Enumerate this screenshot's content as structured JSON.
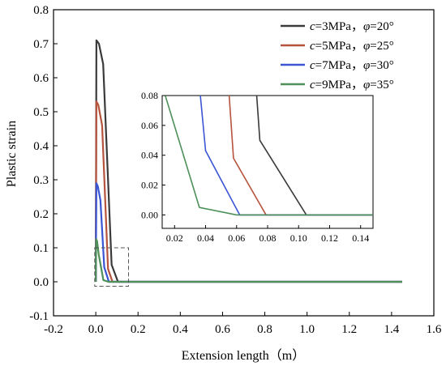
{
  "chart_data": {
    "type": "line",
    "xlabel": "Extension length（m）",
    "ylabel": "Plastic strain",
    "xlim": [
      -0.2,
      1.6
    ],
    "ylim": [
      -0.1,
      0.8
    ],
    "xticks": [
      "-0.2",
      "0.0",
      "0.2",
      "0.4",
      "0.6",
      "0.8",
      "1.0",
      "1.2",
      "1.4",
      "1.6"
    ],
    "yticks": [
      "-0.1",
      "0.0",
      "0.1",
      "0.2",
      "0.3",
      "0.4",
      "0.5",
      "0.6",
      "0.7",
      "0.8"
    ],
    "legend_position": "top-right",
    "series": [
      {
        "name": "c=3MPa，φ=20°",
        "c": "c",
        "c_val": "=3MPa，",
        "phi": "φ",
        "phi_val": "=20°",
        "color": "#3a3a3a",
        "x": [
          0.0,
          0.003,
          0.015,
          0.035,
          0.075,
          0.105,
          0.13,
          1.45
        ],
        "y": [
          0.0,
          0.71,
          0.7,
          0.64,
          0.05,
          0.0,
          0.0,
          0.0
        ]
      },
      {
        "name": "c=5MPa，φ=25°",
        "c": "c",
        "c_val": "=5MPa，",
        "phi": "φ",
        "phi_val": "=25°",
        "color": "#b5533c",
        "x": [
          0.0,
          0.003,
          0.012,
          0.03,
          0.058,
          0.079,
          0.1,
          1.45
        ],
        "y": [
          0.0,
          0.53,
          0.52,
          0.46,
          0.038,
          0.0,
          0.0,
          0.0
        ]
      },
      {
        "name": "c=7MPa，φ=30°",
        "c": "c",
        "c_val": "=7MPa，",
        "phi": "φ",
        "phi_val": "=30°",
        "color": "#3a55d4",
        "x": [
          0.0,
          0.003,
          0.01,
          0.022,
          0.04,
          0.062,
          0.08,
          1.45
        ],
        "y": [
          0.0,
          0.29,
          0.28,
          0.24,
          0.043,
          0.0,
          0.0,
          0.0
        ]
      },
      {
        "name": "c=9MPa，φ=35°",
        "c": "c",
        "c_val": "=9MPa，",
        "phi": "φ",
        "phi_val": "=35°",
        "color": "#4e8f5a",
        "x": [
          0.0,
          0.002,
          0.006,
          0.014,
          0.036,
          0.06,
          0.148,
          1.45
        ],
        "y": [
          0.0,
          0.125,
          0.12,
          0.08,
          0.005,
          0.0,
          0.0,
          0.0
        ]
      }
    ],
    "inset": {
      "xlim": [
        0.012,
        0.148
      ],
      "ylim": [
        -0.009,
        0.08
      ],
      "xticks": [
        "0.02",
        "0.04",
        "0.06",
        "0.08",
        "0.10",
        "0.12",
        "0.14"
      ],
      "yticks": [
        "0.00",
        "0.02",
        "0.04",
        "0.06",
        "0.08"
      ]
    }
  }
}
